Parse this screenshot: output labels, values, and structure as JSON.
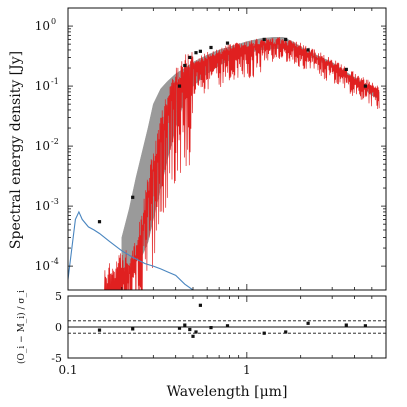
{
  "chart_data": [
    {
      "type": "line",
      "xscale": "log",
      "yscale": "log",
      "xlim": [
        0.1,
        6.0
      ],
      "ylim": [
        4e-05,
        2.0
      ],
      "xlabel": "",
      "ylabel": "Spectral energy density [Jy]",
      "ytick_labels": [
        "10^0",
        "10^-1",
        "10^-2",
        "10^-3",
        "10^-4"
      ],
      "ytick_values": [
        1,
        0.1,
        0.01,
        0.001,
        0.0001
      ],
      "grid": false,
      "colors": {
        "model_envelope": "#9a9a9a",
        "fit_spectrum": "#e02020",
        "blue_component": "#4a86c0",
        "points": "#111111"
      },
      "series": [
        {
          "style": "filled-band",
          "x": [
            0.2,
            0.22,
            0.24,
            0.26,
            0.28,
            0.3,
            0.33,
            0.36,
            0.4,
            0.45,
            0.5,
            0.6,
            0.7,
            0.8,
            1.0,
            1.2,
            1.4,
            1.6,
            1.8,
            2.0,
            2.5,
            3.0,
            3.5,
            4.0,
            4.5,
            5.0,
            5.5
          ],
          "upper": [
            0.0003,
            0.0009,
            0.003,
            0.008,
            0.02,
            0.05,
            0.09,
            0.12,
            0.16,
            0.2,
            0.25,
            0.33,
            0.4,
            0.45,
            0.55,
            0.62,
            0.65,
            0.65,
            0.55,
            0.45,
            0.32,
            0.25,
            0.18,
            0.14,
            0.11,
            0.09,
            0.08
          ],
          "lower": [
            8e-05,
            0.0001,
            0.00012,
            0.00015,
            0.00025,
            0.0006,
            0.002,
            0.006,
            0.02,
            0.06,
            0.1,
            0.16,
            0.22,
            0.27,
            0.35,
            0.4,
            0.42,
            0.42,
            0.4,
            0.36,
            0.27,
            0.2,
            0.15,
            0.12,
            0.09,
            0.07,
            0.06
          ]
        },
        {
          "style": "spiky-line",
          "x": [
            0.16,
            0.18,
            0.2,
            0.22,
            0.24,
            0.26,
            0.28,
            0.3,
            0.33,
            0.36,
            0.4,
            0.45,
            0.5,
            0.6,
            0.7,
            0.8,
            1.0,
            1.2,
            1.4,
            1.6,
            1.8,
            2.0,
            2.5,
            3.0,
            4.0,
            5.0,
            5.5
          ],
          "y": [
            4e-05,
            6e-05,
            8e-05,
            0.0001,
            0.00015,
            0.0004,
            0.0015,
            0.004,
            0.015,
            0.04,
            0.1,
            0.16,
            0.21,
            0.28,
            0.33,
            0.38,
            0.44,
            0.48,
            0.5,
            0.5,
            0.45,
            0.4,
            0.29,
            0.22,
            0.13,
            0.09,
            0.08
          ]
        },
        {
          "style": "line",
          "x": [
            0.1,
            0.11,
            0.115,
            0.12,
            0.13,
            0.14,
            0.15,
            0.17,
            0.2,
            0.23,
            0.27,
            0.3,
            0.33,
            0.36,
            0.4,
            0.45,
            0.5
          ],
          "y": [
            6e-05,
            0.0006,
            0.0008,
            0.0006,
            0.00045,
            0.0004,
            0.00035,
            0.00026,
            0.00018,
            0.00014,
            0.00011,
            0.0001,
            9e-05,
            8e-05,
            7e-05,
            5e-05,
            4e-05
          ]
        }
      ],
      "points": {
        "x": [
          0.15,
          0.23,
          0.42,
          0.45,
          0.48,
          0.52,
          0.55,
          0.63,
          0.78,
          1.25,
          1.65,
          2.2,
          3.6,
          4.6
        ],
        "y": [
          0.00055,
          0.0014,
          0.1,
          0.22,
          0.3,
          0.36,
          0.38,
          0.44,
          0.52,
          0.6,
          0.6,
          0.4,
          0.19,
          0.1
        ]
      }
    },
    {
      "type": "scatter",
      "xscale": "log",
      "xlim": [
        0.1,
        6.0
      ],
      "ylim": [
        -5,
        5
      ],
      "xlabel": "Wavelength [μm]",
      "ylabel": "(O_i − M_i) / σ_i",
      "ytick_labels": [
        "5",
        "0",
        "-5"
      ],
      "ytick_values": [
        5,
        0,
        -5
      ],
      "xtick_labels": [
        "0.1",
        "1"
      ],
      "xtick_values": [
        0.1,
        1
      ],
      "reference_lines": [
        0,
        1,
        -1
      ],
      "x": [
        0.15,
        0.23,
        0.42,
        0.45,
        0.48,
        0.5,
        0.52,
        0.55,
        0.63,
        0.78,
        1.25,
        1.65,
        2.2,
        3.6,
        4.6
      ],
      "y": [
        -0.5,
        -0.3,
        -0.2,
        0.3,
        -0.4,
        -1.5,
        -0.8,
        3.5,
        -0.1,
        0.2,
        -1.0,
        -0.8,
        0.6,
        0.3,
        0.2
      ]
    }
  ]
}
